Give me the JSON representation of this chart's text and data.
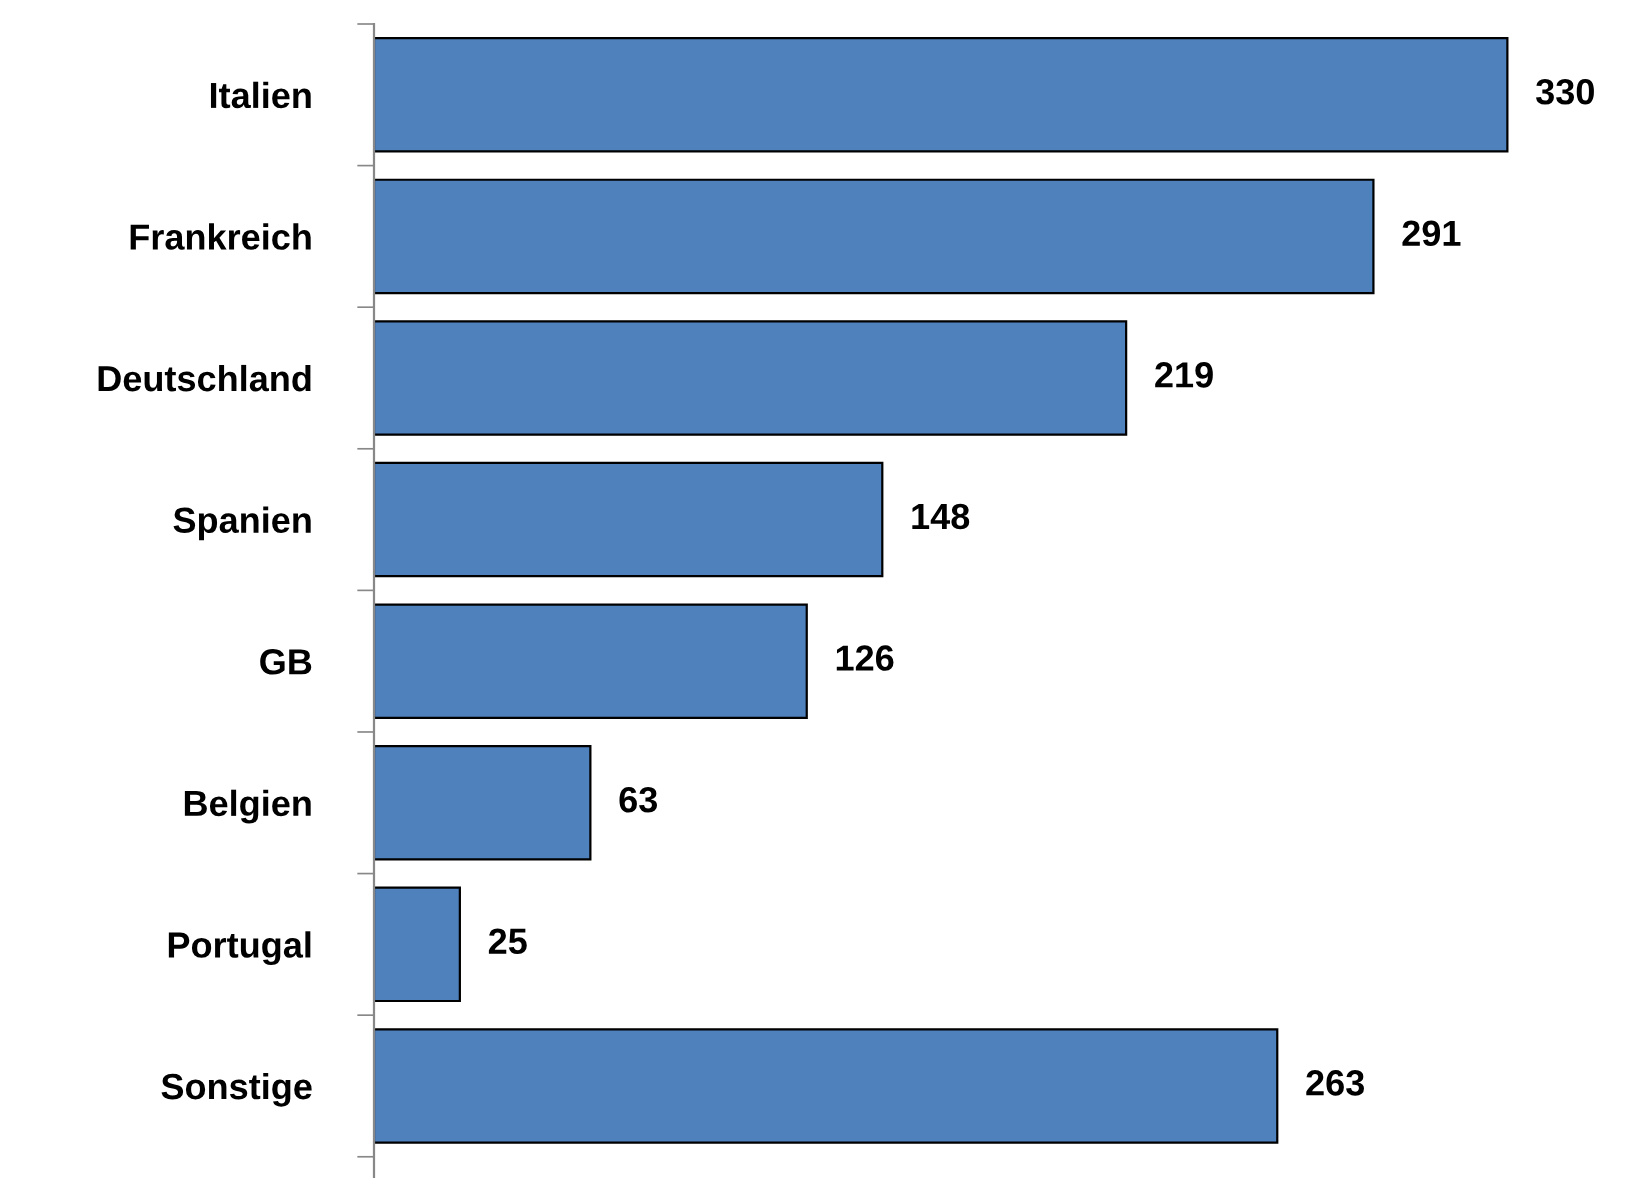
{
  "chart_data": {
    "type": "bar",
    "orientation": "horizontal",
    "categories": [
      "Italien",
      "Frankreich",
      "Deutschland",
      "Spanien",
      "GB",
      "Belgien",
      "Portugal",
      "Sonstige"
    ],
    "values": [
      330,
      291,
      219,
      148,
      126,
      63,
      25,
      263
    ],
    "color": "#4f81bd",
    "data_labels": true,
    "grid": false,
    "legend": false
  }
}
